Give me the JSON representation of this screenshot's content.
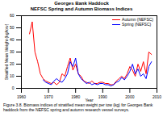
{
  "chart_data": {
    "type": "line",
    "title": "Georges Bank Haddock",
    "subtitle": "NEFSC Spring and Autumn Biomass Indices",
    "x_label": "Year",
    "y_label": "Stratified Mean Weight (kg/tow)",
    "caption": "Figure 3.8. Biomass indices of stratified mean weight per tow (kg) for Georges Bank haddock from the NEFSC spring and autumn research vessel surveys.",
    "x": [
      1963,
      1964,
      1965,
      1966,
      1967,
      1968,
      1969,
      1970,
      1971,
      1972,
      1973,
      1974,
      1975,
      1976,
      1977,
      1978,
      1979,
      1980,
      1981,
      1982,
      1983,
      1984,
      1985,
      1986,
      1987,
      1988,
      1989,
      1990,
      1991,
      1992,
      1993,
      1994,
      1995,
      1996,
      1997,
      1998,
      1999,
      2000,
      2001,
      2002,
      2003,
      2004,
      2005,
      2006,
      2007,
      2008
    ],
    "series": [
      {
        "name": "Autumn (NEFSC)",
        "color": "#ff0000",
        "values": [
          45,
          55,
          30,
          22,
          12,
          8,
          6,
          5,
          4,
          5,
          3,
          5,
          12,
          10,
          18,
          25,
          15,
          20,
          12,
          10,
          6,
          5,
          4,
          6,
          4,
          4,
          5,
          5,
          4,
          4,
          3,
          3,
          6,
          8,
          10,
          8,
          12,
          18,
          15,
          10,
          20,
          14,
          22,
          12,
          30,
          28
        ]
      },
      {
        "name": "Spring (NEFSC)",
        "color": "#0000ff",
        "values": [
          null,
          null,
          null,
          null,
          null,
          7,
          5,
          4,
          3,
          6,
          8,
          6,
          5,
          8,
          12,
          22,
          18,
          25,
          12,
          8,
          6,
          4,
          5,
          3,
          4,
          3,
          4,
          4,
          3,
          3,
          2,
          3,
          5,
          6,
          9,
          7,
          10,
          14,
          20,
          12,
          16,
          10,
          12,
          8,
          18,
          22
        ]
      }
    ],
    "xlim": [
      1960,
      2010
    ],
    "xticks": [
      1960,
      1970,
      1980,
      1990,
      2000,
      2010
    ],
    "ylim": [
      0,
      60
    ],
    "yticks": [
      0,
      10,
      20,
      30,
      40,
      50,
      60
    ],
    "grid": false,
    "legend": "upper right"
  }
}
